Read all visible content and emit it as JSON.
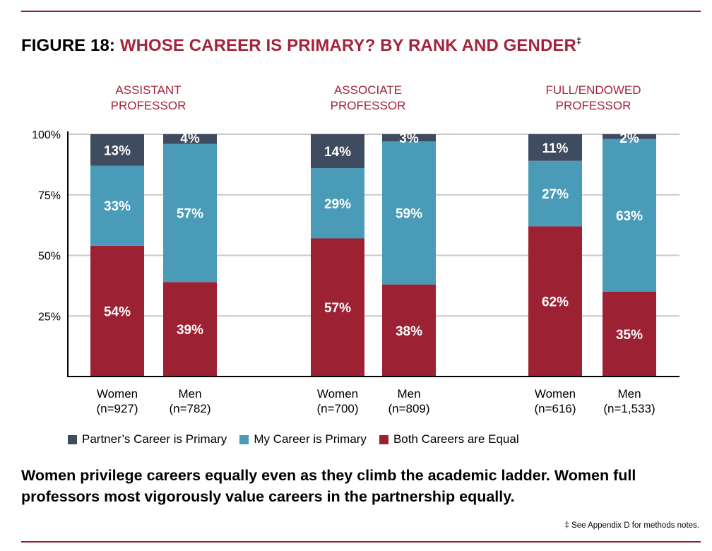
{
  "title": {
    "prefix": "FIGURE 18:",
    "main": "WHOSE CAREER IS PRIMARY? BY RANK AND GENDER",
    "mark": "‡"
  },
  "colors": {
    "partner": "#3f4b5f",
    "mine": "#4a9bb8",
    "equal": "#9c2133",
    "accent": "#a3243b"
  },
  "chart_data": {
    "type": "bar",
    "stacked": true,
    "ylim": [
      0,
      100
    ],
    "yticks": [
      "100%",
      "75%",
      "50%",
      "25%"
    ],
    "groups": [
      {
        "label_lines": [
          "ASSISTANT",
          "PROFESSOR"
        ]
      },
      {
        "label_lines": [
          "ASSOCIATE",
          "PROFESSOR"
        ]
      },
      {
        "label_lines": [
          "FULL/ENDOWED",
          "PROFESSOR"
        ]
      }
    ],
    "categories": [
      {
        "group": 0,
        "name": "Women",
        "n": "(n=927)"
      },
      {
        "group": 0,
        "name": "Men",
        "n": "(n=782)"
      },
      {
        "group": 1,
        "name": "Women",
        "n": "(n=700)"
      },
      {
        "group": 1,
        "name": "Men",
        "n": "(n=809)"
      },
      {
        "group": 2,
        "name": "Women",
        "n": "(n=616)"
      },
      {
        "group": 2,
        "name": "Men",
        "n": "(n=1,533)"
      }
    ],
    "series": [
      {
        "name": "Both Careers are Equal",
        "key": "equal",
        "values": [
          54,
          39,
          57,
          38,
          62,
          35
        ]
      },
      {
        "name": "My Career is Primary",
        "key": "mine",
        "values": [
          33,
          57,
          29,
          59,
          27,
          63
        ]
      },
      {
        "name": "Partner’s Career is Primary",
        "key": "partner",
        "values": [
          13,
          4,
          14,
          3,
          11,
          2
        ]
      }
    ]
  },
  "legend": [
    {
      "key": "partner",
      "label": "Partner’s Career is Primary"
    },
    {
      "key": "mine",
      "label": "My Career is Primary"
    },
    {
      "key": "equal",
      "label": "Both Careers are Equal"
    }
  ],
  "caption": "Women privilege careers equally even as they climb the academic ladder. Women full professors most vigorously value careers in the partnership equally.",
  "footnote": "‡ See Appendix D for methods notes."
}
